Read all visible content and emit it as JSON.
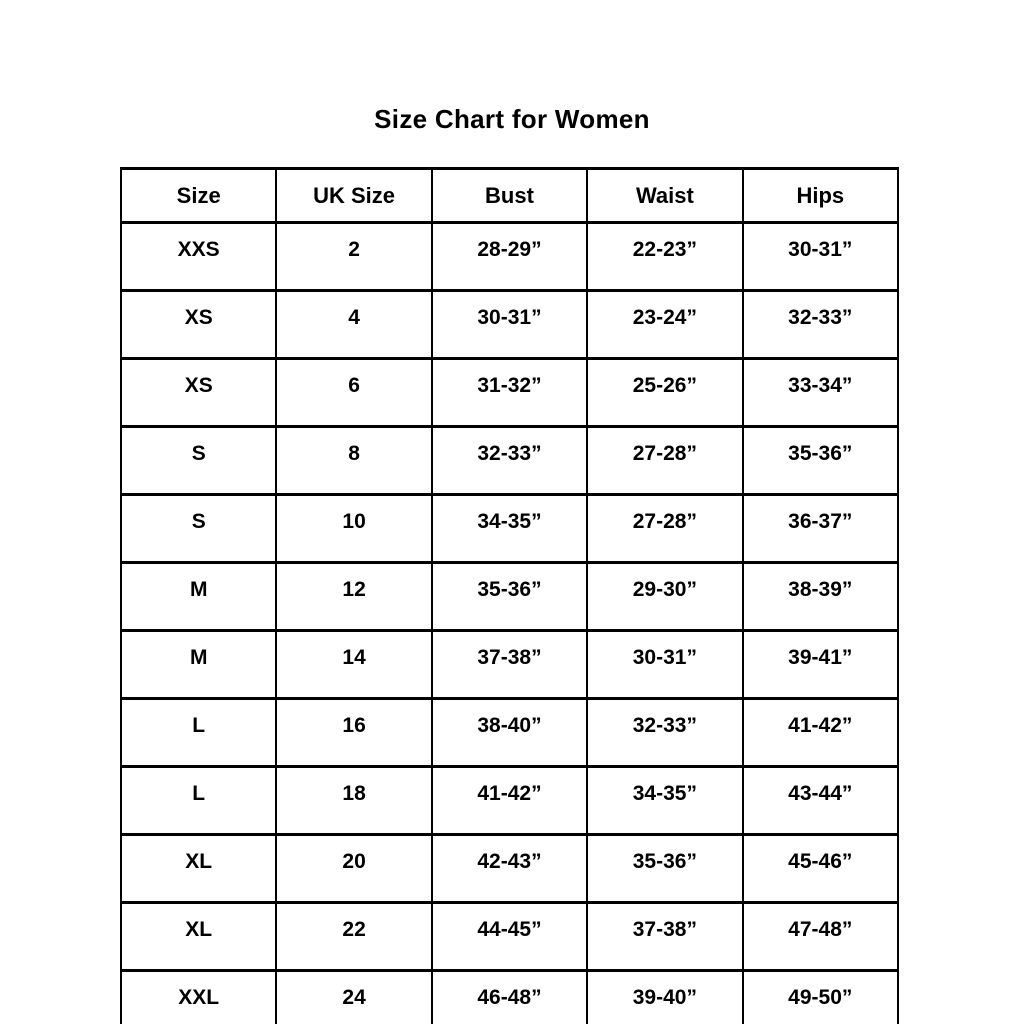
{
  "chart_data": {
    "type": "table",
    "title": "Size Chart for Women",
    "columns": [
      "Size",
      "UK Size",
      "Bust",
      "Waist",
      "Hips"
    ],
    "rows": [
      [
        "XXS",
        "2",
        "28-29”",
        "22-23”",
        "30-31”"
      ],
      [
        "XS",
        "4",
        "30-31”",
        "23-24”",
        "32-33”"
      ],
      [
        "XS",
        "6",
        "31-32”",
        "25-26”",
        "33-34”"
      ],
      [
        "S",
        "8",
        "32-33”",
        "27-28”",
        "35-36”"
      ],
      [
        "S",
        "10",
        "34-35”",
        "27-28”",
        "36-37”"
      ],
      [
        "M",
        "12",
        "35-36”",
        "29-30”",
        "38-39”"
      ],
      [
        "M",
        "14",
        "37-38”",
        "30-31”",
        "39-41”"
      ],
      [
        "L",
        "16",
        "38-40”",
        "32-33”",
        "41-42”"
      ],
      [
        "L",
        "18",
        "41-42”",
        "34-35”",
        "43-44”"
      ],
      [
        "XL",
        "20",
        "42-43”",
        "35-36”",
        "45-46”"
      ],
      [
        "XL",
        "22",
        "44-45”",
        "37-38”",
        "47-48”"
      ],
      [
        "XXL",
        "24",
        "46-48”",
        "39-40”",
        "49-50”"
      ]
    ],
    "layout": {
      "grid": true,
      "header_row": true,
      "units": "inches"
    }
  },
  "colors": {
    "background": "#ffffff",
    "border": "#000000",
    "text": "#000000"
  }
}
